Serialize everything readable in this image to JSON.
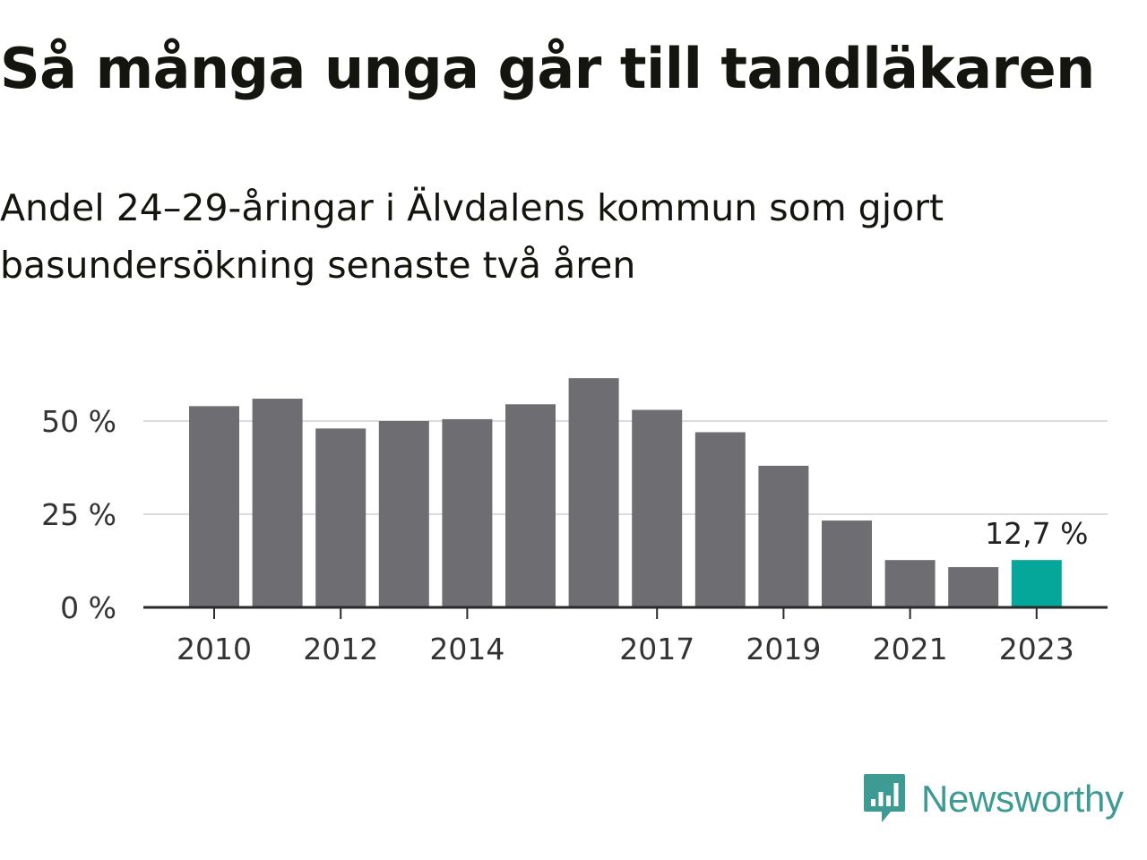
{
  "title": "Så många unga går till tandläkaren",
  "subtitle": "Andel 24–29-åringar i Älvdalens kommun som gjort basundersökning senaste två åren",
  "brand": {
    "name": "Newsworthy",
    "icon": "newsworthy-logo-icon",
    "color": "#3e9b94"
  },
  "chart_data": {
    "type": "bar",
    "categories": [
      "2010",
      "2011",
      "2012",
      "2013",
      "2014",
      "2015",
      "2016",
      "2017",
      "2018",
      "2019",
      "2020",
      "2021",
      "2022",
      "2023"
    ],
    "values": [
      54,
      56,
      48,
      50,
      50.5,
      54.5,
      61.5,
      53,
      47,
      38,
      23.3,
      12.7,
      10.8,
      12.7
    ],
    "x_tick_labels": [
      "2010",
      "",
      "2012",
      "",
      "2014",
      "",
      "",
      "2017",
      "",
      "2019",
      "",
      "2021",
      "",
      "2023"
    ],
    "y_ticks": [
      0,
      25,
      50
    ],
    "y_tick_labels": [
      "0 %",
      "25 %",
      "50 %"
    ],
    "ylim": [
      0,
      62
    ],
    "xlabel": "",
    "ylabel": "",
    "grid": true,
    "bar_color": "#6e6d72",
    "highlight_color": "#04a799",
    "highlight_index": 13,
    "annotations": [
      {
        "category": "2023",
        "text": "12,7 %"
      }
    ]
  }
}
